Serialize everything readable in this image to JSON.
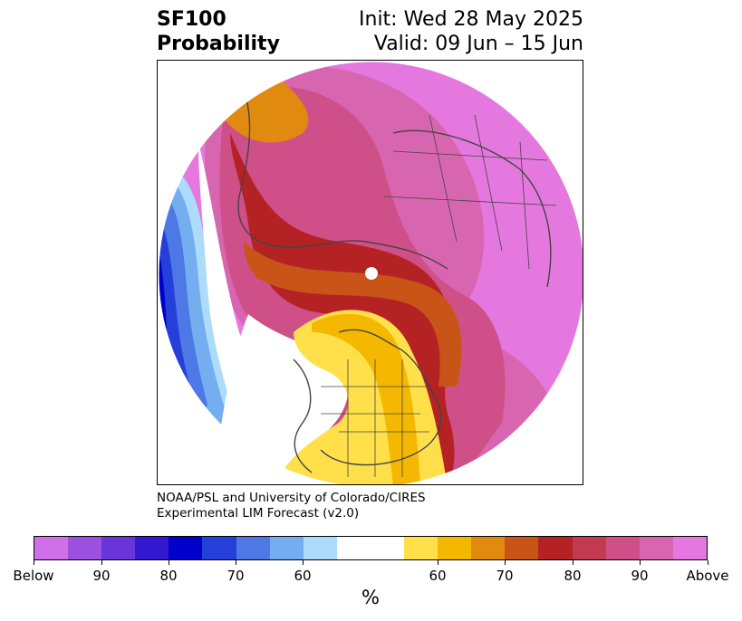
{
  "title": {
    "left_line1": "SF100",
    "left_line2": "Probability",
    "right_line1": "Init: Wed 28 May 2025",
    "right_line2": "Valid: 09 Jun – 15 Jun"
  },
  "credit": {
    "line1": "NOAA/PSL and University of Colorado/CIRES",
    "line2": "Experimental LIM Forecast (v2.0)"
  },
  "colorbar": {
    "unit": "%",
    "colors": [
      "#d070e8",
      "#9b50e0",
      "#6a35d8",
      "#3318d0",
      "#0000cc",
      "#2540d8",
      "#4d78e6",
      "#74aef0",
      "#acdcfa",
      "#ffffff",
      "#ffffff",
      "#ffe04a",
      "#f5b800",
      "#e08a10",
      "#c85418",
      "#b42224",
      "#c23a50",
      "#cf5088",
      "#d865b0",
      "#e578df"
    ],
    "labels": [
      "Below",
      "90",
      "80",
      "70",
      "60",
      "60",
      "70",
      "80",
      "90",
      "Above"
    ]
  },
  "map": {
    "projection": "north polar stereographic",
    "pole_marker_color": "#ffffff",
    "line_color": "#444444",
    "regions": [
      {
        "name": "west-pacific-below",
        "category": "below-60",
        "color": "#acdcfa"
      },
      {
        "name": "west-pacific-below",
        "category": "below-70",
        "color": "#74aef0"
      },
      {
        "name": "west-pacific-below",
        "category": "below-80",
        "color": "#2540d8"
      },
      {
        "name": "north-america",
        "category": "above-60",
        "color": "#ffe04a"
      },
      {
        "name": "eurasia",
        "category": "above-90",
        "color": "#d865b0"
      },
      {
        "name": "arctic-band",
        "category": "above-80",
        "color": "#b42224"
      }
    ]
  }
}
